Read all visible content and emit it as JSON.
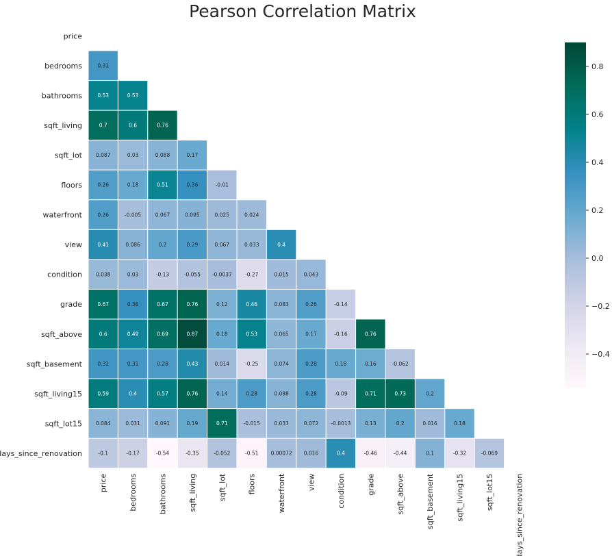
{
  "chart_data": {
    "type": "heatmap",
    "title": "Pearson Correlation Matrix",
    "variables": [
      "price",
      "bedrooms",
      "bathrooms",
      "sqft_living",
      "sqft_lot",
      "floors",
      "waterfront",
      "view",
      "condition",
      "grade",
      "sqft_above",
      "sqft_basement",
      "sqft_living15",
      "sqft_lot15",
      "days_since_renovation"
    ],
    "mask": "upper-triangle-and-diagonal",
    "lower_triangle": [
      [],
      [
        "0.31"
      ],
      [
        "0.53",
        "0.53"
      ],
      [
        "0.7",
        "0.6",
        "0.76"
      ],
      [
        "0.087",
        "0.03",
        "0.088",
        "0.17"
      ],
      [
        "0.26",
        "0.18",
        "0.51",
        "0.36",
        "-0.01"
      ],
      [
        "0.26",
        "-0.005",
        "0.067",
        "0.095",
        "0.025",
        "0.024"
      ],
      [
        "0.41",
        "0.086",
        "0.2",
        "0.29",
        "0.067",
        "0.033",
        "0.4"
      ],
      [
        "0.038",
        "0.03",
        "-0.13",
        "-0.055",
        "-0.0037",
        "-0.27",
        "0.015",
        "0.043"
      ],
      [
        "0.67",
        "0.36",
        "0.67",
        "0.76",
        "0.12",
        "0.46",
        "0.083",
        "0.26",
        "-0.14"
      ],
      [
        "0.6",
        "0.49",
        "0.69",
        "0.87",
        "0.18",
        "0.53",
        "0.065",
        "0.17",
        "-0.16",
        "0.76"
      ],
      [
        "0.32",
        "0.31",
        "0.28",
        "0.43",
        "0.014",
        "-0.25",
        "0.074",
        "0.28",
        "0.18",
        "0.16",
        "-0.062"
      ],
      [
        "0.59",
        "0.4",
        "0.57",
        "0.76",
        "0.14",
        "0.28",
        "0.088",
        "0.28",
        "-0.09",
        "0.71",
        "0.73",
        "0.2"
      ],
      [
        "0.084",
        "0.031",
        "0.091",
        "0.19",
        "0.71",
        "-0.015",
        "0.033",
        "0.072",
        "-0.0013",
        "0.13",
        "0.2",
        "0.016",
        "0.18"
      ],
      [
        "-0.1",
        "-0.17",
        "-0.54",
        "-0.35",
        "-0.052",
        "-0.51",
        "0.00072",
        "0.016",
        "0.4",
        "-0.46",
        "-0.44",
        "0.1",
        "-0.32",
        "-0.069"
      ]
    ],
    "colorbar": {
      "range": [
        -0.54,
        0.9
      ],
      "ticks": [
        0.8,
        0.6,
        0.4,
        0.2,
        0.0,
        -0.2,
        -0.4
      ],
      "tick_labels": [
        "0.8",
        "0.6",
        "0.4",
        "0.2",
        "0.0",
        "−0.2",
        "−0.4"
      ],
      "colormap": "PuBuGn",
      "stops": [
        "#fff7fb",
        "#ece7f2",
        "#d0d1e6",
        "#a6bddb",
        "#67a9cf",
        "#3690c0",
        "#02818a",
        "#016c59",
        "#014636"
      ]
    },
    "grid_line_color": "#ffffff"
  }
}
